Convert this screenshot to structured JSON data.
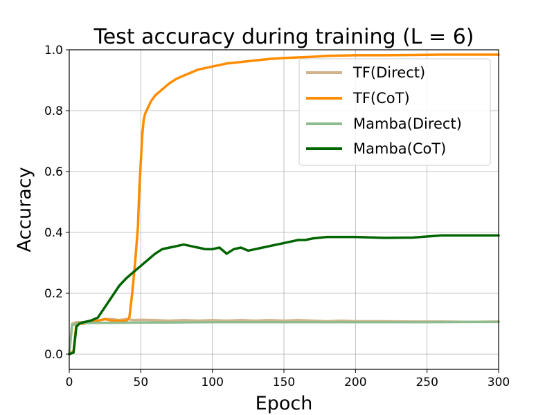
{
  "chart_data": {
    "type": "line",
    "title": "Test accuracy during training (L = 6)",
    "xlabel": "Epoch",
    "ylabel": "Accuracy",
    "xlim": [
      0,
      300
    ],
    "ylim": [
      -0.05,
      1.0
    ],
    "xticks": [
      0,
      50,
      100,
      150,
      200,
      250,
      300
    ],
    "yticks": [
      0.0,
      0.2,
      0.4,
      0.6,
      0.8,
      1.0
    ],
    "xtick_labels": [
      "0",
      "50",
      "100",
      "150",
      "200",
      "250",
      "300"
    ],
    "ytick_labels": [
      "0.0",
      "0.2",
      "0.4",
      "0.6",
      "0.8",
      "1.0"
    ],
    "grid": true,
    "legend_position": "top-right",
    "series": [
      {
        "name": "TF(Direct)",
        "color": "#D2B48C",
        "x": [
          0,
          2,
          5,
          10,
          15,
          20,
          25,
          30,
          35,
          40,
          45,
          50,
          60,
          70,
          80,
          90,
          100,
          110,
          120,
          130,
          140,
          150,
          160,
          170,
          180,
          190,
          200,
          220,
          240,
          260,
          280,
          300
        ],
        "y": [
          0.0,
          0.1,
          0.105,
          0.105,
          0.11,
          0.11,
          0.115,
          0.115,
          0.112,
          0.115,
          0.112,
          0.113,
          0.112,
          0.11,
          0.112,
          0.11,
          0.112,
          0.11,
          0.112,
          0.11,
          0.112,
          0.11,
          0.112,
          0.11,
          0.108,
          0.11,
          0.108,
          0.108,
          0.107,
          0.107,
          0.106,
          0.107
        ]
      },
      {
        "name": "TF(CoT)",
        "color": "#FF8C00",
        "x": [
          0,
          3,
          5,
          10,
          15,
          20,
          25,
          30,
          35,
          40,
          42,
          44,
          46,
          48,
          49,
          50,
          51,
          52,
          53,
          55,
          57,
          60,
          65,
          70,
          75,
          80,
          85,
          90,
          95,
          100,
          110,
          120,
          130,
          140,
          150,
          160,
          170,
          180,
          200,
          220,
          240,
          260,
          280,
          300
        ],
        "y": [
          0.0,
          0.01,
          0.1,
          0.1,
          0.105,
          0.11,
          0.115,
          0.11,
          0.11,
          0.11,
          0.12,
          0.2,
          0.3,
          0.42,
          0.55,
          0.63,
          0.72,
          0.77,
          0.79,
          0.81,
          0.83,
          0.85,
          0.87,
          0.89,
          0.905,
          0.915,
          0.925,
          0.935,
          0.94,
          0.945,
          0.955,
          0.96,
          0.965,
          0.97,
          0.973,
          0.975,
          0.977,
          0.98,
          0.982,
          0.982,
          0.983,
          0.984,
          0.984,
          0.984
        ]
      },
      {
        "name": "Mamba(Direct)",
        "color": "#8FBC8F",
        "x": [
          0,
          2,
          5,
          10,
          20,
          30,
          50,
          70,
          100,
          130,
          160,
          190,
          220,
          250,
          280,
          300
        ],
        "y": [
          0.0,
          0.095,
          0.1,
          0.102,
          0.103,
          0.103,
          0.104,
          0.104,
          0.105,
          0.105,
          0.105,
          0.105,
          0.105,
          0.105,
          0.106,
          0.106
        ]
      },
      {
        "name": "Mamba(CoT)",
        "color": "#006400",
        "x": [
          0,
          3,
          5,
          7,
          10,
          15,
          20,
          25,
          30,
          35,
          40,
          45,
          50,
          55,
          60,
          65,
          70,
          75,
          80,
          85,
          90,
          95,
          100,
          105,
          110,
          115,
          120,
          125,
          130,
          135,
          140,
          145,
          150,
          155,
          160,
          165,
          170,
          180,
          190,
          200,
          220,
          240,
          260,
          280,
          300
        ],
        "y": [
          0.0,
          0.005,
          0.09,
          0.1,
          0.105,
          0.11,
          0.12,
          0.155,
          0.19,
          0.225,
          0.25,
          0.27,
          0.29,
          0.31,
          0.33,
          0.345,
          0.35,
          0.355,
          0.36,
          0.355,
          0.35,
          0.345,
          0.345,
          0.35,
          0.33,
          0.345,
          0.35,
          0.34,
          0.345,
          0.35,
          0.355,
          0.36,
          0.365,
          0.37,
          0.375,
          0.375,
          0.38,
          0.385,
          0.385,
          0.385,
          0.382,
          0.383,
          0.39,
          0.39,
          0.39
        ]
      }
    ]
  }
}
